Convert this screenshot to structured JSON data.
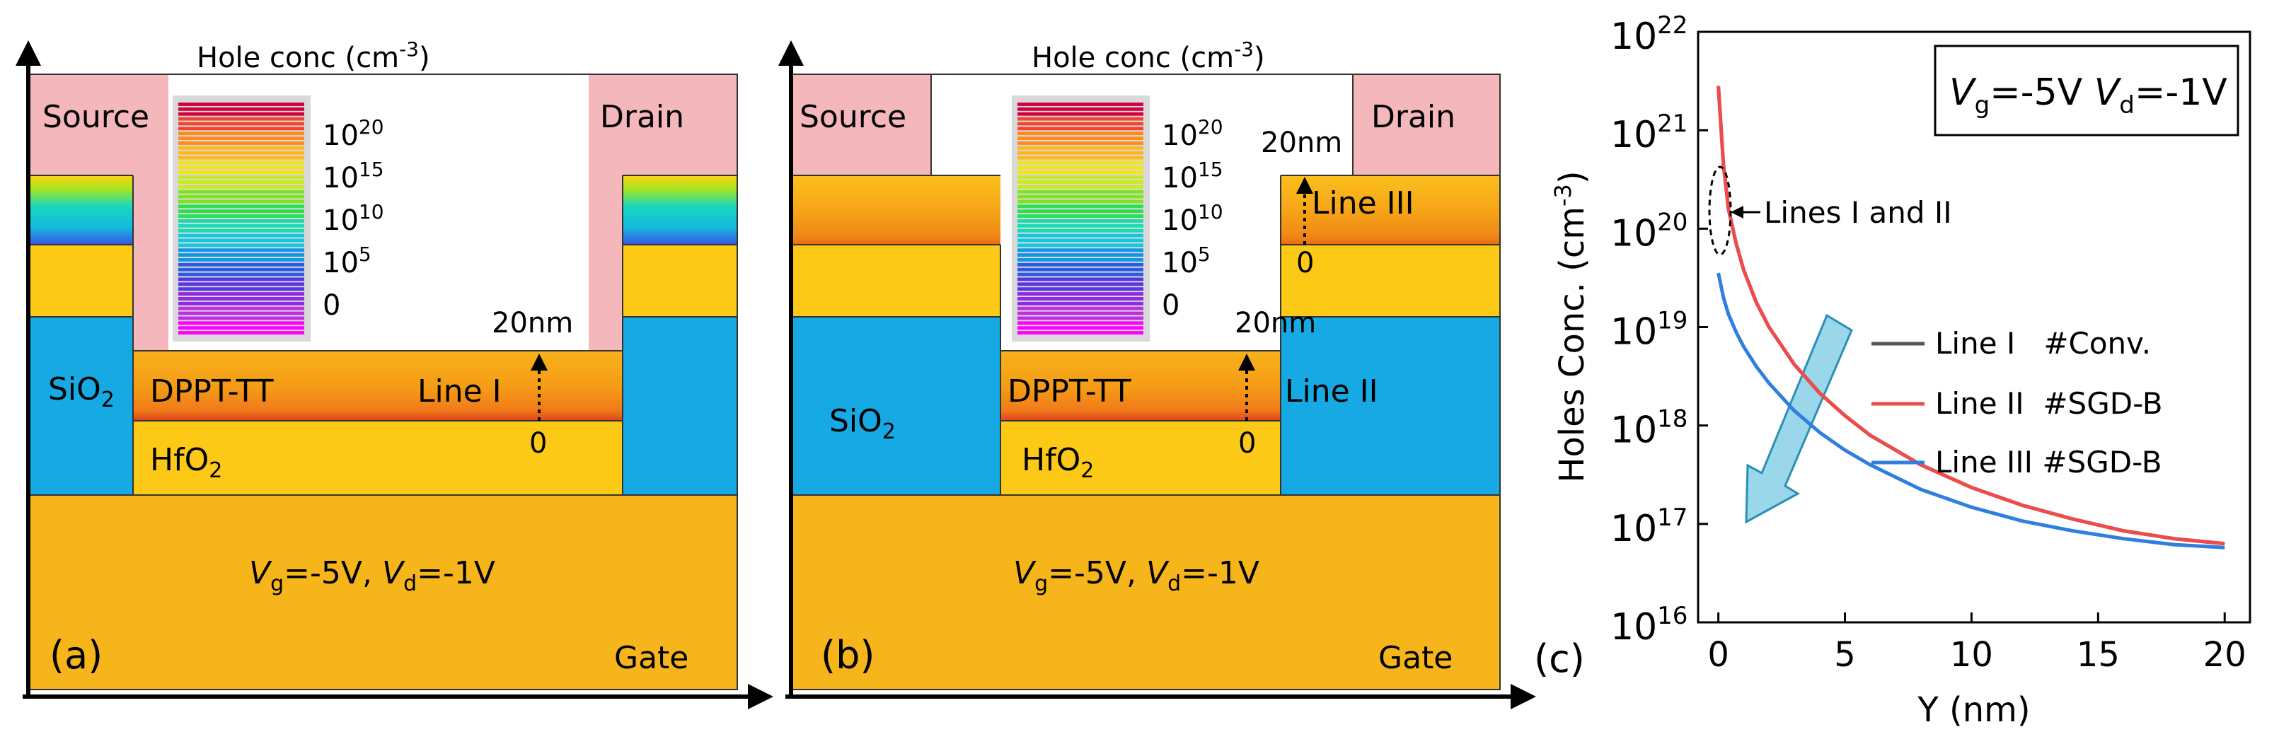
{
  "colorbar": {
    "title": "Hole conc (cm",
    "title_exp": "-3",
    "title_close": ")",
    "ticks": [
      {
        "base": "10",
        "exp": "20"
      },
      {
        "base": "10",
        "exp": "15"
      },
      {
        "base": "10",
        "exp": "10"
      },
      {
        "base": "10",
        "exp": "5"
      },
      {
        "base": "0",
        "exp": ""
      }
    ],
    "colors": [
      "#d3003d",
      "#f1452e",
      "#ff8a1a",
      "#ffb81a",
      "#f4e21b",
      "#c8ea1e",
      "#7fe321",
      "#2fdf52",
      "#19dcb1",
      "#14c9dc",
      "#1496e6",
      "#2a5ce8",
      "#5735e6",
      "#8f2be6",
      "#c02ee2",
      "#ff00ff"
    ]
  },
  "panel_a": {
    "label": "(a)",
    "source": "Source",
    "drain": "Drain",
    "dppt": "DPPT-TT",
    "sio2": "SiO",
    "sio2_sub": "2",
    "hfo2": "HfO",
    "hfo2_sub": "2",
    "gate": "Gate",
    "line": "Line I",
    "arrow_top": "20nm",
    "arrow_bottom": "0",
    "bias_vg": "V",
    "bias_vg_sub": "g",
    "bias_mid": "=-5V, ",
    "bias_vd": "V",
    "bias_vd_sub": "d",
    "bias_end": "=-1V"
  },
  "panel_b": {
    "label": "(b)",
    "source": "Source",
    "drain": "Drain",
    "dppt": "DPPT-TT",
    "sio2": "SiO",
    "sio2_sub": "2",
    "hfo2": "HfO",
    "hfo2_sub": "2",
    "gate": "Gate",
    "line2": "Line II",
    "line3": "Line III",
    "arrow2_top": "20nm",
    "arrow2_bottom": "0",
    "arrow3_top": "20nm",
    "arrow3_bottom": "0",
    "bias_vg": "V",
    "bias_vg_sub": "g",
    "bias_mid": "=-5V, ",
    "bias_vd": "V",
    "bias_vd_sub": "d",
    "bias_end": "=-1V"
  },
  "chart_data": {
    "type": "line",
    "label": "(c)",
    "title_box": {
      "vg": "V",
      "vg_sub": "g",
      "vg_val": "=-5V ",
      "vd": "V",
      "vd_sub": "d",
      "vd_val": "=-1V"
    },
    "xlabel": "Y (nm)",
    "ylabel": "Holes Conc. (cm",
    "ylabel_exp": "-3",
    "ylabel_close": ")",
    "xlim": [
      -0.8,
      21.0
    ],
    "ylim_log10": [
      16,
      22
    ],
    "x_ticks": [
      0,
      5,
      10,
      15,
      20
    ],
    "y_ticks": [
      {
        "base": "10",
        "exp": "22",
        "value": 22
      },
      {
        "base": "10",
        "exp": "21",
        "value": 21
      },
      {
        "base": "10",
        "exp": "20",
        "value": 20
      },
      {
        "base": "10",
        "exp": "19",
        "value": 19
      },
      {
        "base": "10",
        "exp": "18",
        "value": 18
      },
      {
        "base": "10",
        "exp": "17",
        "value": 17
      },
      {
        "base": "10",
        "exp": "16",
        "value": 16
      }
    ],
    "annotation": "Lines I and II",
    "series": [
      {
        "name": "Line I   #Conv.",
        "color": "#555555",
        "x": [
          0.0,
          0.2,
          0.4,
          0.7,
          1.0,
          1.5,
          2.0,
          3.0,
          4.0,
          5.0,
          6.0,
          8.0,
          10.0,
          12.0,
          14.0,
          16.0,
          18.0,
          20.0
        ],
        "log10y": [
          21.45,
          20.65,
          20.2,
          19.85,
          19.58,
          19.25,
          19.0,
          18.62,
          18.33,
          18.1,
          17.9,
          17.6,
          17.37,
          17.19,
          17.05,
          16.93,
          16.85,
          16.8
        ]
      },
      {
        "name": "Line II  #SGD-B",
        "color": "#ef4b4b",
        "x": [
          0.0,
          0.2,
          0.4,
          0.7,
          1.0,
          1.5,
          2.0,
          3.0,
          4.0,
          5.0,
          6.0,
          8.0,
          10.0,
          12.0,
          14.0,
          16.0,
          18.0,
          20.0
        ],
        "log10y": [
          21.45,
          20.65,
          20.2,
          19.85,
          19.58,
          19.25,
          19.0,
          18.62,
          18.33,
          18.1,
          17.9,
          17.6,
          17.37,
          17.19,
          17.05,
          16.93,
          16.85,
          16.8
        ]
      },
      {
        "name": "Line III #SGD-B",
        "color": "#2f7fe0",
        "x": [
          0.0,
          0.2,
          0.4,
          0.7,
          1.0,
          1.5,
          2.0,
          3.0,
          4.0,
          5.0,
          6.0,
          8.0,
          10.0,
          12.0,
          14.0,
          16.0,
          18.0,
          20.0
        ],
        "log10y": [
          19.55,
          19.3,
          19.13,
          18.95,
          18.8,
          18.6,
          18.43,
          18.15,
          17.93,
          17.75,
          17.6,
          17.35,
          17.17,
          17.03,
          16.93,
          16.85,
          16.79,
          16.76
        ]
      }
    ]
  }
}
